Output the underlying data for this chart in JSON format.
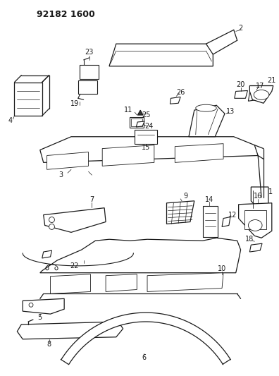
{
  "title": "92182 1600",
  "bg_color": "#ffffff",
  "line_color": "#1a1a1a",
  "figsize": [
    3.96,
    5.33
  ],
  "dpi": 100
}
